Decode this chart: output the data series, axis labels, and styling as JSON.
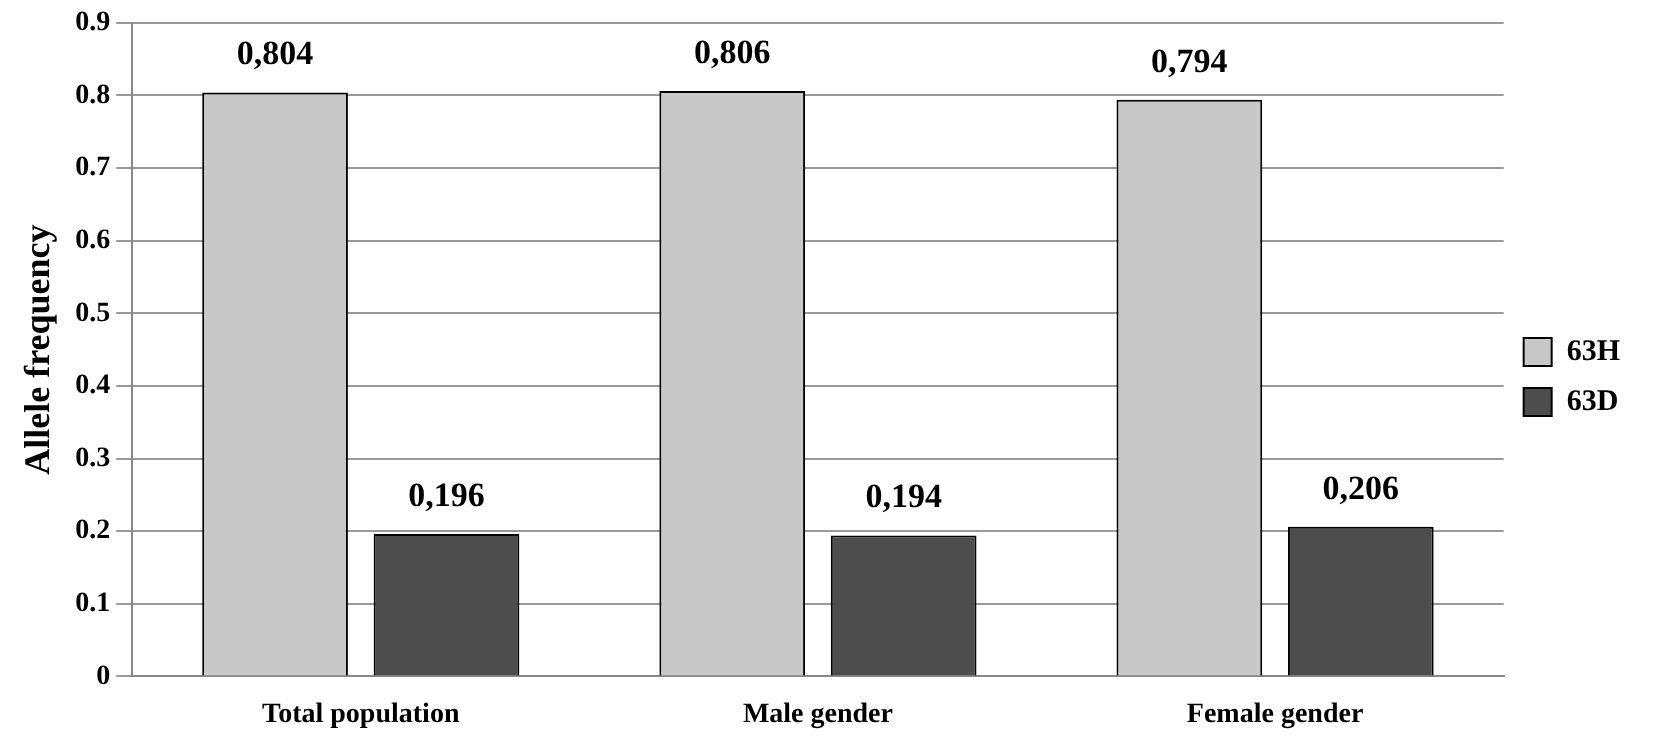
{
  "chart_data": {
    "type": "bar",
    "ylabel": "Allele frequency",
    "categories": [
      "Total population",
      "Male gender",
      "Female gender"
    ],
    "series": [
      {
        "name": "63H",
        "color": "#c8c8c8",
        "values": [
          0.804,
          0.806,
          0.794
        ],
        "value_labels": [
          "0,804",
          "0,806",
          "0,794"
        ]
      },
      {
        "name": "63D",
        "color": "#4d4d4d",
        "values": [
          0.196,
          0.194,
          0.206
        ],
        "value_labels": [
          "0,196",
          "0,194",
          "0,206"
        ]
      }
    ],
    "ylim": [
      0,
      0.9
    ],
    "yticks": [
      0,
      0.1,
      0.2,
      0.3,
      0.4,
      0.5,
      0.6,
      0.7,
      0.8,
      0.9
    ],
    "grid": "y",
    "legend": "right"
  }
}
